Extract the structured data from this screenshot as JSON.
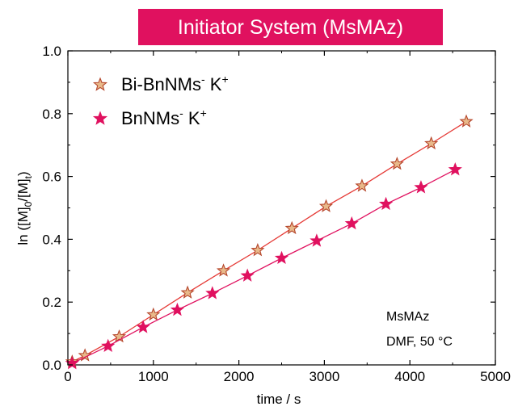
{
  "chart_data": {
    "type": "scatter",
    "title": "Initiator System (MsMAz)",
    "title_bg_color": "#e0115f",
    "xlabel": "time / s",
    "ylabel": {
      "base": "ln ([M]",
      "sub1": "0",
      "mid": "/[M]",
      "sub2": "t",
      "end": ")"
    },
    "xlim": [
      0,
      5000
    ],
    "ylim": [
      0.0,
      1.0
    ],
    "x_ticks": [
      "0",
      "1000",
      "2000",
      "3000",
      "4000",
      "5000"
    ],
    "y_ticks": [
      "0.0",
      "0.2",
      "0.4",
      "0.6",
      "0.8",
      "1.0"
    ],
    "grid": false,
    "legend_position": "top-left",
    "annotation": [
      "MsMAz",
      "DMF, 50 °C"
    ],
    "series": [
      {
        "name": {
          "base": "Bi-BnNMs",
          "sup1": "-",
          "mid": " K",
          "sup2": "+"
        },
        "marker": "star-open",
        "marker_fill": "#e8b98a",
        "marker_edge": "#b5462b",
        "line_color": "#e53935",
        "x": [
          50,
          200,
          600,
          1000,
          1400,
          1820,
          2220,
          2620,
          3020,
          3440,
          3850,
          4250,
          4660
        ],
        "y": [
          0.01,
          0.03,
          0.09,
          0.16,
          0.23,
          0.3,
          0.365,
          0.435,
          0.505,
          0.57,
          0.64,
          0.705,
          0.775
        ]
      },
      {
        "name": {
          "base": "BnNMs",
          "sup1": "-",
          "mid": " K",
          "sup2": "+"
        },
        "marker": "star-filled",
        "marker_fill": "#e0115f",
        "marker_edge": "#e0115f",
        "line_color": "#e0115f",
        "x": [
          50,
          470,
          880,
          1280,
          1690,
          2100,
          2500,
          2910,
          3320,
          3720,
          4130,
          4530
        ],
        "y": [
          0.005,
          0.06,
          0.12,
          0.175,
          0.228,
          0.284,
          0.34,
          0.395,
          0.45,
          0.512,
          0.565,
          0.622
        ]
      }
    ]
  }
}
